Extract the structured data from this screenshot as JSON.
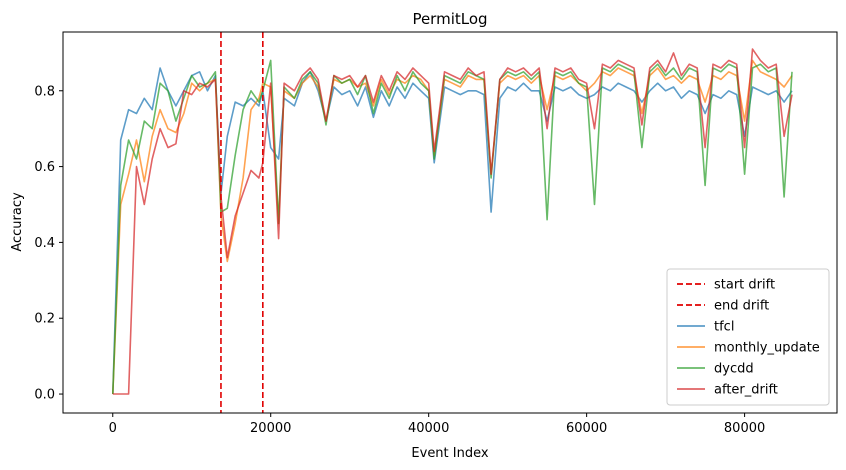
{
  "chart_data": {
    "type": "line",
    "title": "PermitLog",
    "xlabel": "Event Index",
    "ylabel": "Accuracy",
    "xlim": [
      -6300,
      91700
    ],
    "ylim": [
      -0.05,
      0.955
    ],
    "xticks": [
      0,
      20000,
      40000,
      60000,
      80000
    ],
    "yticks": [
      0.0,
      0.2,
      0.4,
      0.6,
      0.8
    ],
    "grid": false,
    "legend_position": "lower right",
    "vlines": [
      {
        "name": "start drift",
        "x": 13700,
        "color": "#e00000",
        "style": "dashed"
      },
      {
        "name": "end drift",
        "x": 19000,
        "color": "#e00000",
        "style": "dashed"
      }
    ],
    "series": [
      {
        "name": "tfcl",
        "color": "#1f77b4",
        "x": [
          0,
          1000,
          2000,
          3000,
          4000,
          5000,
          6000,
          7000,
          8000,
          9000,
          10000,
          11000,
          12000,
          13000,
          13700,
          14500,
          15500,
          16500,
          17500,
          18500,
          19000,
          20000,
          21000,
          21700,
          23000,
          24000,
          25000,
          26000,
          27000,
          28000,
          29000,
          30000,
          31000,
          32000,
          33000,
          34000,
          35000,
          36000,
          37000,
          38000,
          39000,
          40000,
          40700,
          42000,
          43000,
          44000,
          45000,
          46000,
          47000,
          47900,
          49000,
          50000,
          51000,
          52000,
          53000,
          54000,
          55000,
          56000,
          57000,
          58000,
          59000,
          60000,
          61000,
          62000,
          63000,
          64000,
          65000,
          66000,
          67000,
          68000,
          69000,
          70000,
          71000,
          72000,
          73000,
          74000,
          75000,
          76000,
          77000,
          78000,
          79000,
          80000,
          81000,
          82000,
          83000,
          84000,
          85000,
          86000
        ],
        "values": [
          0.0,
          0.67,
          0.75,
          0.74,
          0.78,
          0.75,
          0.86,
          0.8,
          0.76,
          0.8,
          0.84,
          0.85,
          0.8,
          0.84,
          0.53,
          0.68,
          0.77,
          0.76,
          0.78,
          0.76,
          0.8,
          0.65,
          0.62,
          0.78,
          0.76,
          0.82,
          0.85,
          0.8,
          0.72,
          0.81,
          0.79,
          0.8,
          0.76,
          0.81,
          0.73,
          0.8,
          0.76,
          0.81,
          0.78,
          0.82,
          0.8,
          0.78,
          0.61,
          0.81,
          0.8,
          0.79,
          0.8,
          0.8,
          0.79,
          0.48,
          0.78,
          0.81,
          0.8,
          0.82,
          0.8,
          0.8,
          0.72,
          0.81,
          0.8,
          0.81,
          0.79,
          0.78,
          0.79,
          0.81,
          0.8,
          0.82,
          0.81,
          0.8,
          0.77,
          0.8,
          0.82,
          0.8,
          0.81,
          0.78,
          0.8,
          0.79,
          0.74,
          0.79,
          0.78,
          0.8,
          0.79,
          0.68,
          0.81,
          0.8,
          0.79,
          0.8,
          0.77,
          0.8
        ]
      },
      {
        "name": "monthly_update",
        "color": "#ff7f0e",
        "x": [
          0,
          1000,
          2000,
          3000,
          4000,
          5000,
          6000,
          7000,
          8000,
          9000,
          10000,
          11000,
          12000,
          13000,
          13700,
          14500,
          15500,
          16500,
          17500,
          18500,
          19000,
          20000,
          21000,
          21700,
          23000,
          24000,
          25000,
          26000,
          27000,
          28000,
          29000,
          30000,
          31000,
          32000,
          33000,
          34000,
          35000,
          36000,
          37000,
          38000,
          39000,
          40000,
          40700,
          42000,
          43000,
          44000,
          45000,
          46000,
          47000,
          47900,
          49000,
          50000,
          51000,
          52000,
          53000,
          54000,
          55000,
          56000,
          57000,
          58000,
          59000,
          60000,
          61000,
          62000,
          63000,
          64000,
          65000,
          66000,
          67000,
          68000,
          69000,
          70000,
          71000,
          72000,
          73000,
          74000,
          75000,
          76000,
          77000,
          78000,
          79000,
          80000,
          81000,
          82000,
          83000,
          84000,
          85000,
          86000
        ],
        "values": [
          0.0,
          0.5,
          0.58,
          0.67,
          0.56,
          0.68,
          0.75,
          0.7,
          0.69,
          0.74,
          0.82,
          0.8,
          0.82,
          0.83,
          0.47,
          0.35,
          0.45,
          0.57,
          0.75,
          0.78,
          0.82,
          0.81,
          0.45,
          0.8,
          0.78,
          0.82,
          0.84,
          0.81,
          0.72,
          0.83,
          0.82,
          0.83,
          0.81,
          0.82,
          0.76,
          0.83,
          0.79,
          0.83,
          0.82,
          0.84,
          0.83,
          0.8,
          0.63,
          0.83,
          0.82,
          0.81,
          0.84,
          0.83,
          0.83,
          0.58,
          0.82,
          0.84,
          0.83,
          0.84,
          0.82,
          0.84,
          0.75,
          0.84,
          0.83,
          0.84,
          0.82,
          0.8,
          0.82,
          0.85,
          0.84,
          0.86,
          0.85,
          0.84,
          0.74,
          0.84,
          0.86,
          0.83,
          0.84,
          0.82,
          0.84,
          0.83,
          0.77,
          0.84,
          0.83,
          0.85,
          0.84,
          0.72,
          0.88,
          0.85,
          0.84,
          0.83,
          0.81,
          0.84
        ]
      },
      {
        "name": "dycdd",
        "color": "#2ca02c",
        "x": [
          0,
          1000,
          2000,
          3000,
          4000,
          5000,
          6000,
          7000,
          8000,
          9000,
          10000,
          11000,
          12000,
          13000,
          13700,
          14500,
          15500,
          16500,
          17500,
          18500,
          19000,
          20000,
          21000,
          21700,
          23000,
          24000,
          25000,
          26000,
          27000,
          28000,
          29000,
          30000,
          31000,
          32000,
          33000,
          34000,
          35000,
          36000,
          37000,
          38000,
          39000,
          40000,
          40700,
          42000,
          43000,
          44000,
          45000,
          46000,
          47000,
          47900,
          49000,
          50000,
          51000,
          52000,
          53000,
          54000,
          55000,
          56000,
          57000,
          58000,
          59000,
          60000,
          61000,
          62000,
          63000,
          64000,
          65000,
          66000,
          67000,
          68000,
          69000,
          70000,
          71000,
          72000,
          73000,
          74000,
          75000,
          76000,
          77000,
          78000,
          79000,
          80000,
          81000,
          82000,
          83000,
          84000,
          85000,
          86000
        ],
        "values": [
          0.0,
          0.55,
          0.67,
          0.62,
          0.72,
          0.7,
          0.82,
          0.8,
          0.72,
          0.78,
          0.84,
          0.81,
          0.82,
          0.85,
          0.48,
          0.49,
          0.63,
          0.75,
          0.8,
          0.77,
          0.8,
          0.88,
          0.45,
          0.81,
          0.78,
          0.83,
          0.85,
          0.82,
          0.71,
          0.84,
          0.82,
          0.83,
          0.79,
          0.84,
          0.74,
          0.82,
          0.78,
          0.84,
          0.8,
          0.85,
          0.82,
          0.8,
          0.62,
          0.84,
          0.83,
          0.82,
          0.85,
          0.84,
          0.83,
          0.57,
          0.83,
          0.85,
          0.84,
          0.85,
          0.83,
          0.85,
          0.46,
          0.85,
          0.84,
          0.85,
          0.82,
          0.81,
          0.5,
          0.86,
          0.85,
          0.87,
          0.86,
          0.85,
          0.65,
          0.85,
          0.87,
          0.84,
          0.86,
          0.83,
          0.86,
          0.85,
          0.55,
          0.86,
          0.85,
          0.87,
          0.86,
          0.58,
          0.86,
          0.87,
          0.85,
          0.86,
          0.52,
          0.85
        ]
      },
      {
        "name": "after_drift",
        "color": "#d62728",
        "x": [
          0,
          1000,
          2000,
          3000,
          4000,
          5000,
          6000,
          7000,
          8000,
          9000,
          10000,
          11000,
          12000,
          13000,
          13700,
          14500,
          15500,
          16500,
          17500,
          18500,
          19000,
          20000,
          21000,
          21700,
          23000,
          24000,
          25000,
          26000,
          27000,
          28000,
          29000,
          30000,
          31000,
          32000,
          33000,
          34000,
          35000,
          36000,
          37000,
          38000,
          39000,
          40000,
          40700,
          42000,
          43000,
          44000,
          45000,
          46000,
          47000,
          47900,
          49000,
          50000,
          51000,
          52000,
          53000,
          54000,
          55000,
          56000,
          57000,
          58000,
          59000,
          60000,
          61000,
          62000,
          63000,
          64000,
          65000,
          66000,
          67000,
          68000,
          69000,
          70000,
          71000,
          72000,
          73000,
          74000,
          75000,
          76000,
          77000,
          78000,
          79000,
          80000,
          81000,
          82000,
          83000,
          84000,
          85000,
          86000
        ],
        "values": [
          0.0,
          0.0,
          0.0,
          0.6,
          0.5,
          0.62,
          0.7,
          0.65,
          0.66,
          0.8,
          0.79,
          0.82,
          0.81,
          0.83,
          0.52,
          0.36,
          0.47,
          0.53,
          0.59,
          0.57,
          0.61,
          0.82,
          0.41,
          0.82,
          0.8,
          0.84,
          0.86,
          0.83,
          0.72,
          0.84,
          0.83,
          0.84,
          0.81,
          0.84,
          0.77,
          0.84,
          0.8,
          0.85,
          0.83,
          0.86,
          0.84,
          0.82,
          0.64,
          0.85,
          0.84,
          0.83,
          0.86,
          0.84,
          0.85,
          0.58,
          0.83,
          0.86,
          0.85,
          0.86,
          0.84,
          0.86,
          0.7,
          0.86,
          0.85,
          0.86,
          0.83,
          0.82,
          0.7,
          0.87,
          0.86,
          0.88,
          0.87,
          0.86,
          0.71,
          0.86,
          0.88,
          0.85,
          0.9,
          0.84,
          0.87,
          0.86,
          0.65,
          0.87,
          0.86,
          0.88,
          0.87,
          0.65,
          0.91,
          0.88,
          0.86,
          0.87,
          0.68,
          0.79
        ]
      }
    ]
  }
}
